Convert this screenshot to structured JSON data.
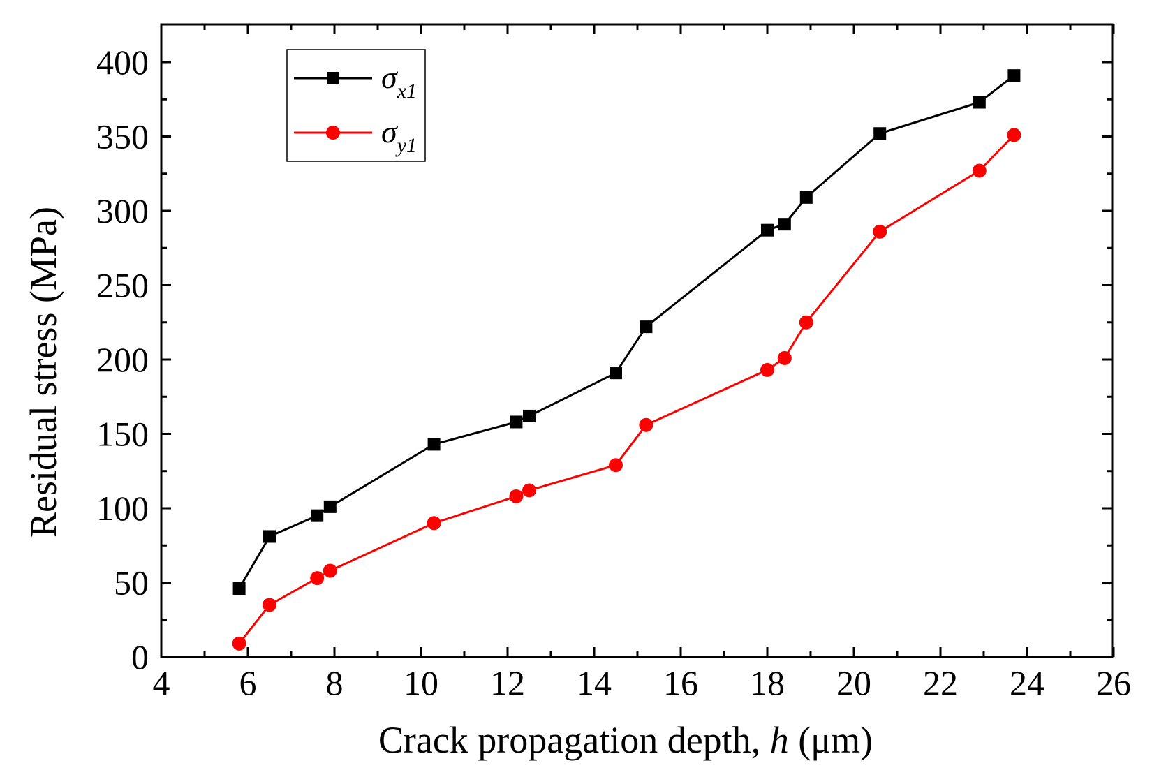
{
  "chart_data": {
    "type": "line",
    "title": "",
    "xlabel_main": "Crack propagation depth, ",
    "xlabel_var": "h",
    "xlabel_unit": " (μm)",
    "ylabel": "Residual stress (MPa)",
    "xlim": [
      4,
      26
    ],
    "ylim": [
      0,
      420
    ],
    "xticks": [
      4,
      6,
      8,
      10,
      12,
      14,
      16,
      18,
      20,
      22,
      24,
      26
    ],
    "yticks": [
      0,
      50,
      100,
      150,
      200,
      250,
      300,
      350,
      400
    ],
    "legend_position": "top-left",
    "series": [
      {
        "name": "σx1",
        "symbol": "σ",
        "subscript": "x1",
        "color": "#000000",
        "marker": "square",
        "x": [
          5.8,
          6.5,
          7.6,
          7.9,
          10.3,
          12.2,
          12.5,
          14.5,
          15.2,
          18.0,
          18.4,
          18.9,
          20.6,
          22.9,
          23.7
        ],
        "y": [
          46,
          81,
          95,
          101,
          143,
          158,
          162,
          191,
          222,
          287,
          291,
          309,
          352,
          373,
          391
        ]
      },
      {
        "name": "σy1",
        "symbol": "σ",
        "subscript": "y1",
        "color": "#ff0000",
        "marker": "circle",
        "x": [
          5.8,
          6.5,
          7.6,
          7.9,
          10.3,
          12.2,
          12.5,
          14.5,
          15.2,
          18.0,
          18.4,
          18.9,
          20.6,
          22.9,
          23.7
        ],
        "y": [
          9,
          35,
          53,
          58,
          90,
          108,
          112,
          129,
          156,
          193,
          201,
          225,
          286,
          327,
          351
        ]
      }
    ]
  }
}
